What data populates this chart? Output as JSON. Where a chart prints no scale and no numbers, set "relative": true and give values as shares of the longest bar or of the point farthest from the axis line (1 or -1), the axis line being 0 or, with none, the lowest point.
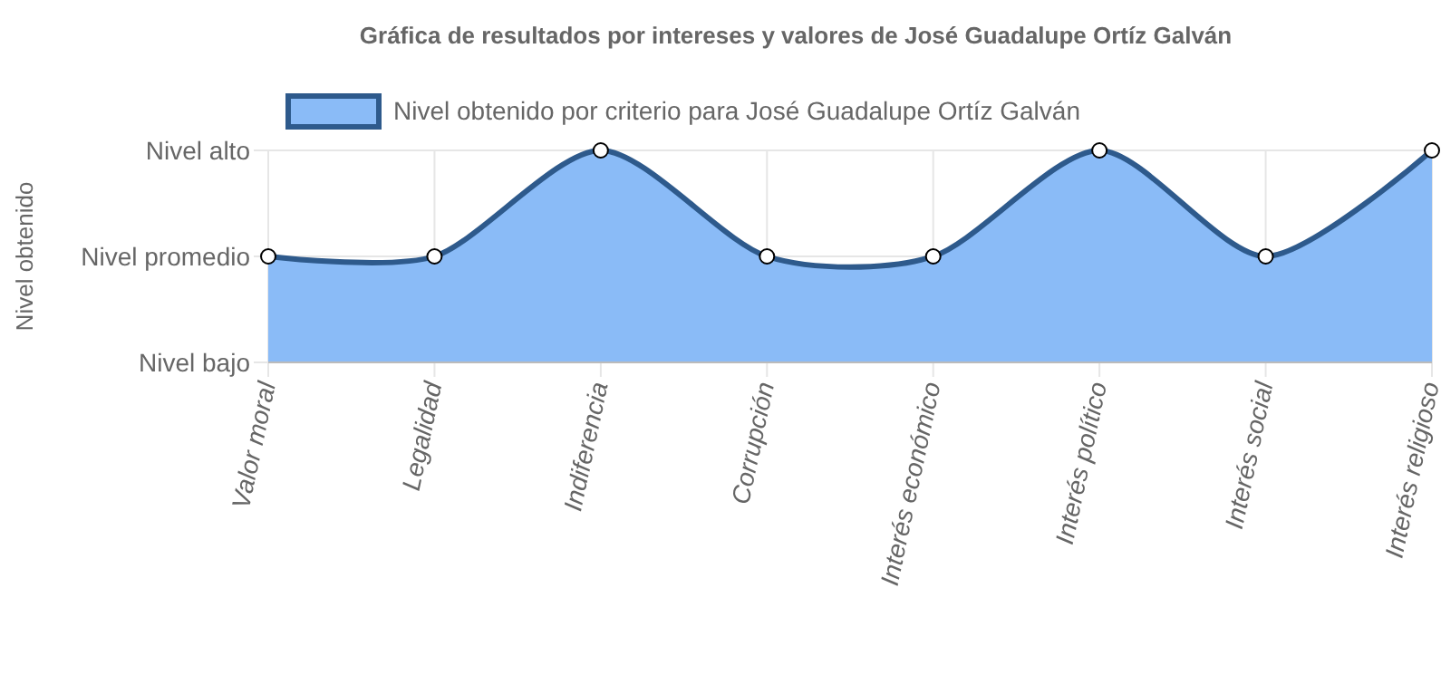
{
  "chart_data": {
    "type": "area",
    "title": "Gráfica de resultados por intereses y valores de José Guadalupe Ortíz Galván",
    "categories": [
      "Valor moral",
      "Legalidad",
      "Indiferencia",
      "Corrupción",
      "Interés económico",
      "Interés político",
      "Interés social",
      "Interés religioso"
    ],
    "series": [
      {
        "name": "Nivel obtenido por criterio para José Guadalupe Ortíz Galván",
        "color": "#2e5a8c",
        "values": [
          0.5,
          0.5,
          1,
          0.5,
          0.5,
          1,
          0.5,
          1
        ]
      }
    ],
    "relative": true,
    "annotations": [
      "Nivel obtenido",
      "Nivel bajo",
      "Nivel promedio",
      "Nivel alto"
    ],
    "grid": true,
    "legend": "top",
    "marker": "circle",
    "line_style": "solid"
  }
}
